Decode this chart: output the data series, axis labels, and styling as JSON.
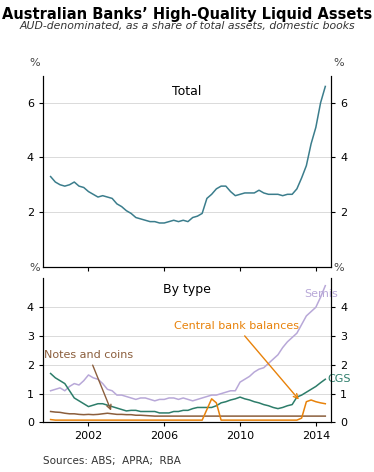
{
  "title": "Australian Banks’ High-Quality Liquid Assets",
  "subtitle": "AUD-denominated, as a share of total assets, domestic books",
  "source": "Sources: ABS;  APRA;  RBA",
  "panel1_label": "Total",
  "panel2_label": "By type",
  "ylim1": [
    0,
    7
  ],
  "ylim2": [
    0,
    5
  ],
  "yticks1": [
    2,
    4,
    6
  ],
  "yticks2": [
    0,
    1,
    2,
    3,
    4
  ],
  "total_color": "#3b7d8c",
  "semis_color": "#b8a8d8",
  "cgs_color": "#2d7d6a",
  "notes_coins_color": "#8b5e3c",
  "central_bank_color": "#e8820a",
  "years": [
    2000.0,
    2000.25,
    2000.5,
    2000.75,
    2001.0,
    2001.25,
    2001.5,
    2001.75,
    2002.0,
    2002.25,
    2002.5,
    2002.75,
    2003.0,
    2003.25,
    2003.5,
    2003.75,
    2004.0,
    2004.25,
    2004.5,
    2004.75,
    2005.0,
    2005.25,
    2005.5,
    2005.75,
    2006.0,
    2006.25,
    2006.5,
    2006.75,
    2007.0,
    2007.25,
    2007.5,
    2007.75,
    2008.0,
    2008.25,
    2008.5,
    2008.75,
    2009.0,
    2009.25,
    2009.5,
    2009.75,
    2010.0,
    2010.25,
    2010.5,
    2010.75,
    2011.0,
    2011.25,
    2011.5,
    2011.75,
    2012.0,
    2012.25,
    2012.5,
    2012.75,
    2013.0,
    2013.25,
    2013.5,
    2013.75,
    2014.0,
    2014.25,
    2014.5
  ],
  "total": [
    3.3,
    3.1,
    3.0,
    2.95,
    3.0,
    3.1,
    2.95,
    2.9,
    2.75,
    2.65,
    2.55,
    2.6,
    2.55,
    2.5,
    2.3,
    2.2,
    2.05,
    1.95,
    1.8,
    1.75,
    1.7,
    1.65,
    1.65,
    1.6,
    1.6,
    1.65,
    1.7,
    1.65,
    1.7,
    1.65,
    1.8,
    1.85,
    1.95,
    2.5,
    2.65,
    2.85,
    2.95,
    2.95,
    2.75,
    2.6,
    2.65,
    2.7,
    2.7,
    2.7,
    2.8,
    2.7,
    2.65,
    2.65,
    2.65,
    2.6,
    2.65,
    2.65,
    2.85,
    3.25,
    3.7,
    4.5,
    5.1,
    6.0,
    6.6
  ],
  "semis": [
    1.1,
    1.15,
    1.2,
    1.1,
    1.25,
    1.35,
    1.3,
    1.45,
    1.65,
    1.55,
    1.5,
    1.35,
    1.15,
    1.1,
    0.95,
    0.95,
    0.9,
    0.85,
    0.8,
    0.85,
    0.85,
    0.8,
    0.75,
    0.8,
    0.8,
    0.85,
    0.85,
    0.8,
    0.85,
    0.8,
    0.75,
    0.8,
    0.85,
    0.9,
    0.95,
    0.95,
    1.0,
    1.05,
    1.1,
    1.1,
    1.4,
    1.5,
    1.6,
    1.75,
    1.85,
    1.9,
    2.05,
    2.2,
    2.35,
    2.6,
    2.8,
    2.95,
    3.1,
    3.4,
    3.7,
    3.85,
    4.0,
    4.35,
    4.75
  ],
  "cgs": [
    1.7,
    1.55,
    1.45,
    1.35,
    1.1,
    0.85,
    0.75,
    0.65,
    0.55,
    0.6,
    0.65,
    0.65,
    0.6,
    0.55,
    0.5,
    0.45,
    0.4,
    0.42,
    0.42,
    0.38,
    0.38,
    0.38,
    0.38,
    0.33,
    0.33,
    0.33,
    0.38,
    0.38,
    0.42,
    0.42,
    0.48,
    0.52,
    0.52,
    0.52,
    0.52,
    0.58,
    0.68,
    0.72,
    0.78,
    0.82,
    0.88,
    0.82,
    0.78,
    0.72,
    0.68,
    0.62,
    0.58,
    0.52,
    0.48,
    0.52,
    0.58,
    0.62,
    0.88,
    0.95,
    1.05,
    1.15,
    1.25,
    1.38,
    1.5
  ],
  "notes_coins": [
    0.38,
    0.36,
    0.35,
    0.32,
    0.3,
    0.3,
    0.28,
    0.27,
    0.28,
    0.27,
    0.28,
    0.3,
    0.32,
    0.3,
    0.28,
    0.28,
    0.27,
    0.27,
    0.25,
    0.25,
    0.24,
    0.23,
    0.22,
    0.22,
    0.22,
    0.22,
    0.22,
    0.22,
    0.22,
    0.22,
    0.22,
    0.22,
    0.22,
    0.22,
    0.22,
    0.22,
    0.22,
    0.22,
    0.22,
    0.22,
    0.22,
    0.22,
    0.22,
    0.22,
    0.22,
    0.22,
    0.22,
    0.22,
    0.22,
    0.22,
    0.22,
    0.22,
    0.22,
    0.22,
    0.22,
    0.22,
    0.22,
    0.22,
    0.22
  ],
  "central_bank": [
    0.1,
    0.08,
    0.08,
    0.08,
    0.08,
    0.08,
    0.08,
    0.08,
    0.08,
    0.08,
    0.08,
    0.08,
    0.08,
    0.08,
    0.08,
    0.08,
    0.08,
    0.08,
    0.08,
    0.08,
    0.08,
    0.08,
    0.08,
    0.08,
    0.08,
    0.08,
    0.08,
    0.08,
    0.08,
    0.08,
    0.08,
    0.08,
    0.08,
    0.45,
    0.82,
    0.68,
    0.08,
    0.08,
    0.08,
    0.08,
    0.08,
    0.08,
    0.08,
    0.08,
    0.08,
    0.08,
    0.08,
    0.08,
    0.08,
    0.08,
    0.08,
    0.08,
    0.08,
    0.15,
    0.72,
    0.78,
    0.72,
    0.68,
    0.65
  ]
}
